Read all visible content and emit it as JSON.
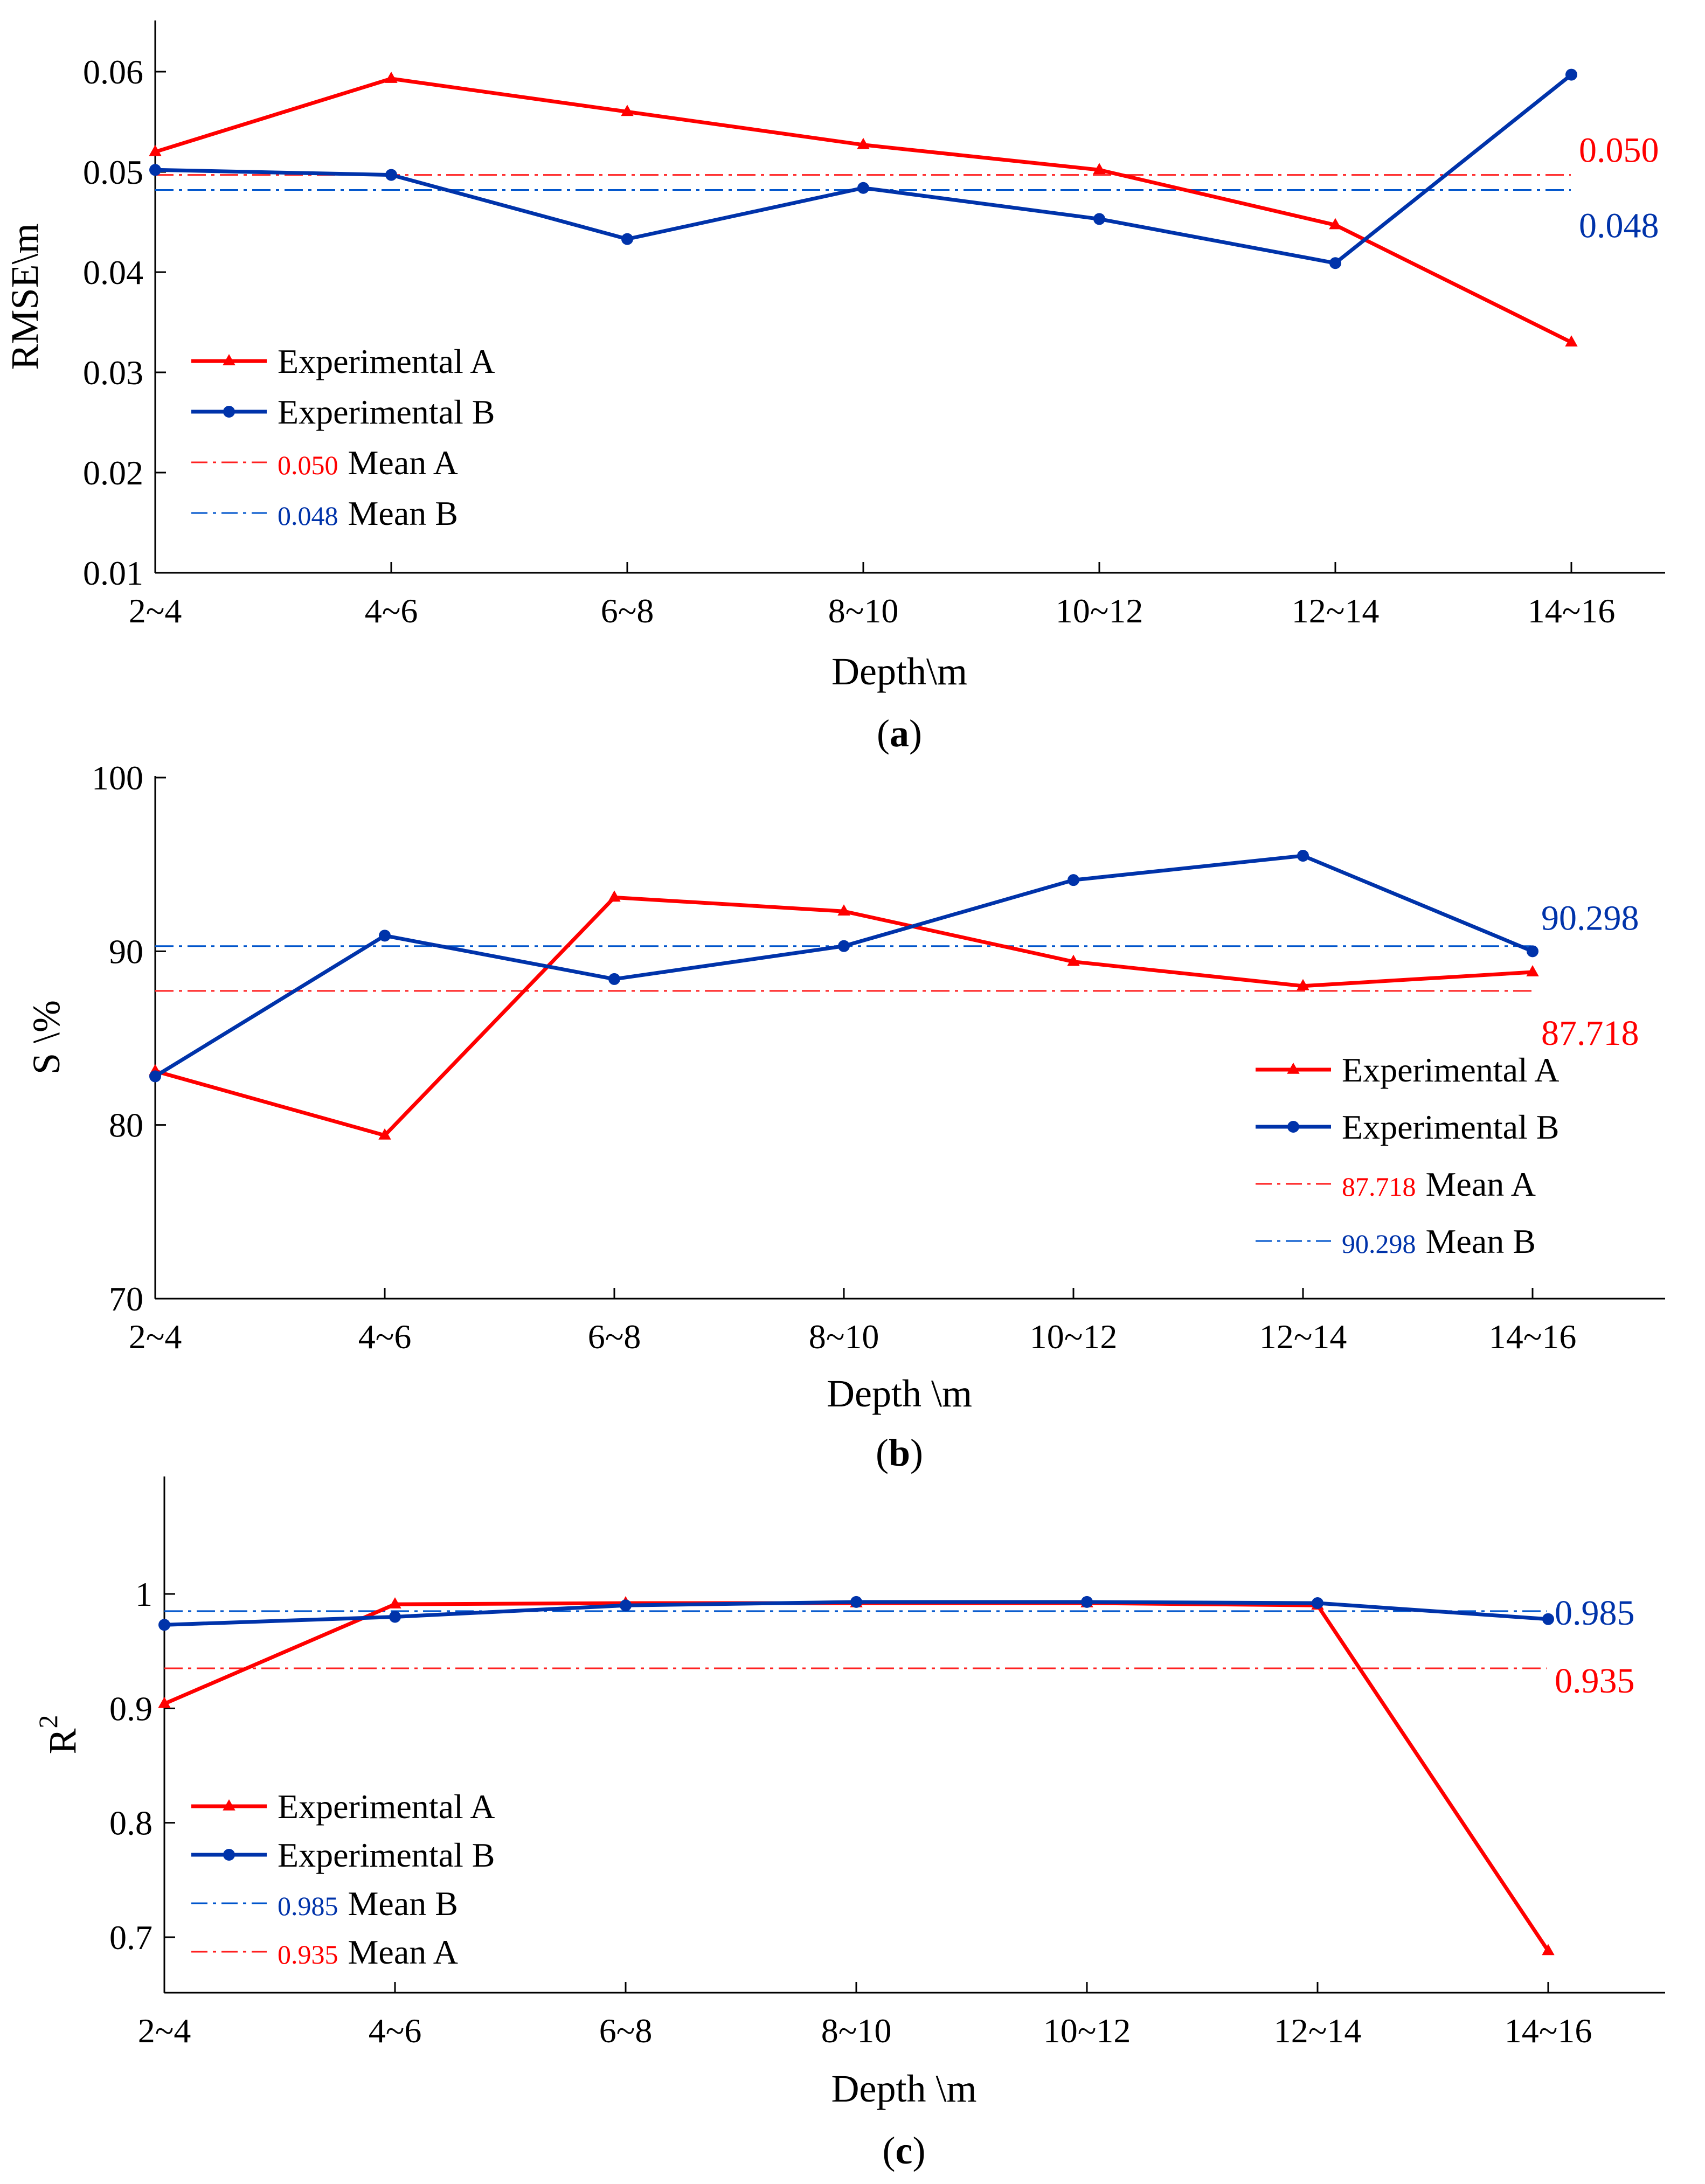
{
  "colors": {
    "a": "#ff0000",
    "b": "#0033aa",
    "mean_a": "#ff2020",
    "mean_b": "#0055cc",
    "axis": "#000000"
  },
  "chart_data": [
    {
      "id": "a",
      "type": "line",
      "caption_letter": "a",
      "categories": [
        "2~4",
        "4~6",
        "6~8",
        "8~10",
        "10~12",
        "12~14",
        "14~16"
      ],
      "xlabel": "Depth\\m",
      "ylabel": "RMSE\\m",
      "ylim": [
        0.01,
        0.065
      ],
      "yticks": [
        "0.01",
        "0.02",
        "0.03",
        "0.04",
        "0.05",
        "0.06"
      ],
      "grid": false,
      "legend_position": "lower-left",
      "series": [
        {
          "name": "Experimental A",
          "marker": "triangle",
          "values": [
            0.052,
            0.0593,
            0.056,
            0.0527,
            0.0502,
            0.0447,
            0.033
          ]
        },
        {
          "name": "Experimental B",
          "marker": "circle",
          "values": [
            0.0502,
            0.0497,
            0.0433,
            0.0484,
            0.0453,
            0.0409,
            0.0597
          ]
        }
      ],
      "means": [
        {
          "name": "Mean A",
          "value": 0.0497,
          "label": "0.050"
        },
        {
          "name": "Mean B",
          "value": 0.0482,
          "label": "0.048"
        }
      ]
    },
    {
      "id": "b",
      "type": "line",
      "caption_letter": "b",
      "categories": [
        "2~4",
        "4~6",
        "6~8",
        "8~10",
        "10~12",
        "12~14",
        "14~16"
      ],
      "xlabel": "Depth \\m",
      "ylabel": "S \\%",
      "ylim": [
        70,
        100
      ],
      "yticks": [
        "70",
        "80",
        "90",
        "100"
      ],
      "grid": false,
      "legend_position": "lower-right",
      "series": [
        {
          "name": "Experimental A",
          "marker": "triangle",
          "values": [
            83.1,
            79.4,
            93.1,
            92.3,
            89.4,
            88.0,
            88.8
          ]
        },
        {
          "name": "Experimental B",
          "marker": "circle",
          "values": [
            82.8,
            90.9,
            88.4,
            90.3,
            94.1,
            95.5,
            90.0
          ]
        }
      ],
      "means": [
        {
          "name": "Mean A",
          "value": 87.718,
          "label": "87.718"
        },
        {
          "name": "Mean B",
          "value": 90.298,
          "label": "90.298"
        }
      ]
    },
    {
      "id": "c",
      "type": "line",
      "caption_letter": "c",
      "categories": [
        "2~4",
        "4~6",
        "6~8",
        "8~10",
        "10~12",
        "12~14",
        "14~16"
      ],
      "xlabel": "Depth \\m",
      "ylabel": "R",
      "ylabel_sup": "2",
      "ylim": [
        0.65,
        1.09
      ],
      "yticks": [
        "0.7",
        "0.8",
        "0.9",
        "1"
      ],
      "grid": false,
      "legend_position": "lower-left",
      "series": [
        {
          "name": "Experimental A",
          "marker": "triangle",
          "values": [
            0.904,
            0.991,
            0.992,
            0.992,
            0.992,
            0.99,
            0.688
          ]
        },
        {
          "name": "Experimental B",
          "marker": "circle",
          "values": [
            0.973,
            0.98,
            0.99,
            0.993,
            0.993,
            0.992,
            0.978
          ]
        }
      ],
      "means": [
        {
          "name": "Mean B",
          "value": 0.985,
          "label": "0.985"
        },
        {
          "name": "Mean A",
          "value": 0.935,
          "label": "0.935"
        }
      ]
    }
  ]
}
